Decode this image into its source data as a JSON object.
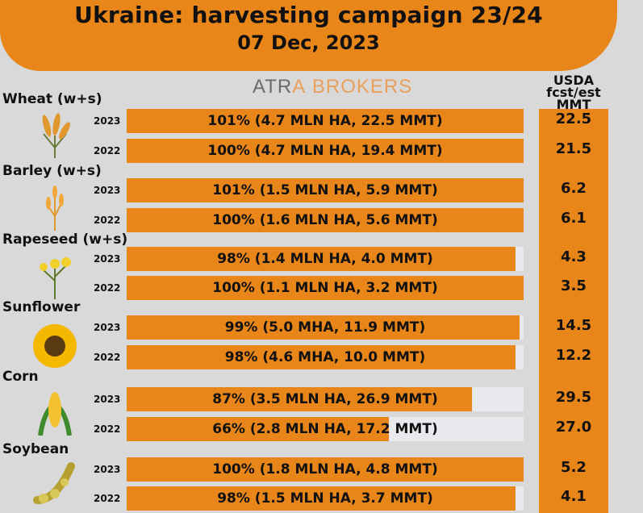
{
  "header": {
    "title": "Ukraine: harvesting campaign 23/24",
    "date": "07 Dec, 2023"
  },
  "logo": {
    "part1": "ATR",
    "part2": "A",
    "part3": "BROKERS"
  },
  "usda_header": {
    "line1": "USDA fcst/est",
    "line2": "MMT"
  },
  "colors": {
    "accent": "#e8861a",
    "track": "#e8e9ed",
    "background": "#d9d9d9"
  },
  "chart_data": {
    "type": "bar",
    "title": "Ukraine: harvesting campaign 23/24",
    "subtitle": "07 Dec, 2023",
    "value_unit": "percent harvested",
    "xlim": [
      0,
      100
    ],
    "crops": [
      {
        "name": "Wheat (w+s)",
        "icon": "wheat-icon",
        "rows": [
          {
            "year": "2023",
            "percent": 101,
            "label": "101% (4.7 MLN HA, 22.5 MMT)",
            "usda": "22.5"
          },
          {
            "year": "2022",
            "percent": 100,
            "label": "100% (4.7 MLN HA, 19.4 MMT)",
            "usda": "21.5"
          }
        ]
      },
      {
        "name": "Barley (w+s)",
        "icon": "barley-icon",
        "rows": [
          {
            "year": "2023",
            "percent": 101,
            "label": "101% (1.5 MLN HA, 5.9 MMT)",
            "usda": "6.2"
          },
          {
            "year": "2022",
            "percent": 100,
            "label": "100% (1.6 MLN HA, 5.6 MMT)",
            "usda": "6.1"
          }
        ]
      },
      {
        "name": "Rapeseed (w+s)",
        "icon": "rapeseed-icon",
        "rows": [
          {
            "year": "2023",
            "percent": 98,
            "label": "98% (1.4 MLN HA, 4.0 MMT)",
            "usda": "4.3"
          },
          {
            "year": "2022",
            "percent": 100,
            "label": "100% (1.1 MLN HA, 3.2 MMT)",
            "usda": "3.5"
          }
        ]
      },
      {
        "name": "Sunflower",
        "icon": "sunflower-icon",
        "rows": [
          {
            "year": "2023",
            "percent": 99,
            "label": "99% (5.0 MHA, 11.9 MMT)",
            "usda": "14.5"
          },
          {
            "year": "2022",
            "percent": 98,
            "label": "98% (4.6 MHA, 10.0 MMT)",
            "usda": "12.2"
          }
        ]
      },
      {
        "name": "Corn",
        "icon": "corn-icon",
        "rows": [
          {
            "year": "2023",
            "percent": 87,
            "label": "87% (3.5 MLN HA, 26.9 MMT)",
            "usda": "29.5"
          },
          {
            "year": "2022",
            "percent": 66,
            "label": "66% (2.8 MLN HA, 17.2 MMT)",
            "usda": "27.0"
          }
        ]
      },
      {
        "name": "Soybean",
        "icon": "soybean-icon",
        "rows": [
          {
            "year": "2023",
            "percent": 100,
            "label": "100% (1.8 MLN HA, 4.8 MMT)",
            "usda": "5.2"
          },
          {
            "year": "2022",
            "percent": 98,
            "label": "98% (1.5 MLN HA, 3.7 MMT)",
            "usda": "4.1"
          }
        ]
      }
    ]
  }
}
